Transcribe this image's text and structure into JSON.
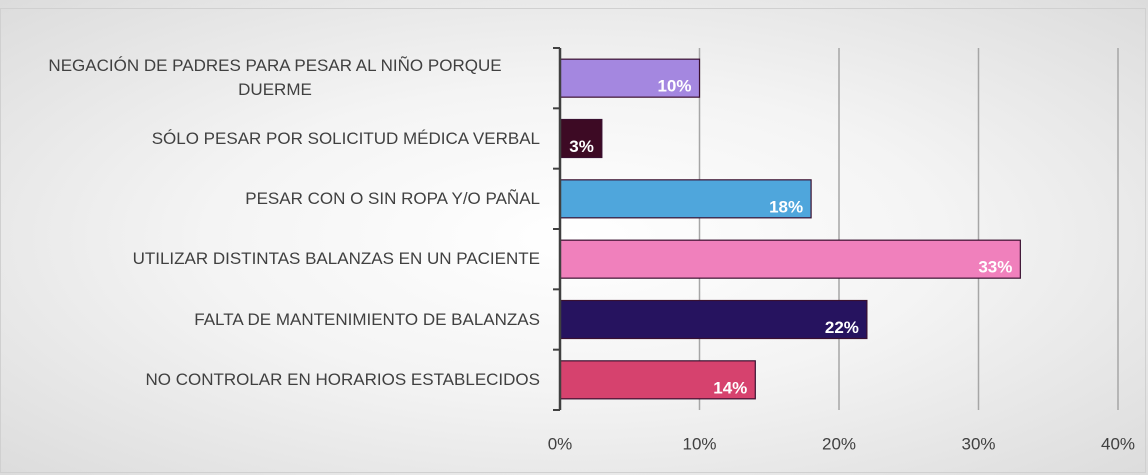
{
  "chart_data": {
    "type": "bar",
    "orientation": "horizontal",
    "categories": [
      "NEGACIÓN DE PADRES PARA PESAR AL NIÑO PORQUE DUERME",
      "SÓLO PESAR POR SOLICITUD MÉDICA VERBAL",
      "PESAR CON O SIN ROPA Y/O PAÑAL",
      "UTILIZAR DISTINTAS BALANZAS EN UN PACIENTE",
      "FALTA DE MANTENIMIENTO DE BALANZAS",
      "NO CONTROLAR EN HORARIOS ESTABLECIDOS"
    ],
    "values": [
      10,
      3,
      18,
      33,
      22,
      14
    ],
    "value_labels": [
      "10%",
      "3%",
      "18%",
      "33%",
      "22%",
      "14%"
    ],
    "colors": [
      "#a487e0",
      "#3d0a24",
      "#4fa6dc",
      "#f080bc",
      "#26135f",
      "#d6426e"
    ],
    "xlim": [
      0,
      40
    ],
    "xticks": [
      {
        "value": 0,
        "label": "0%"
      },
      {
        "value": 10,
        "label": "10%"
      },
      {
        "value": 20,
        "label": "20%"
      },
      {
        "value": 30,
        "label": "30%"
      },
      {
        "value": 40,
        "label": "40%"
      }
    ],
    "grid": true
  }
}
